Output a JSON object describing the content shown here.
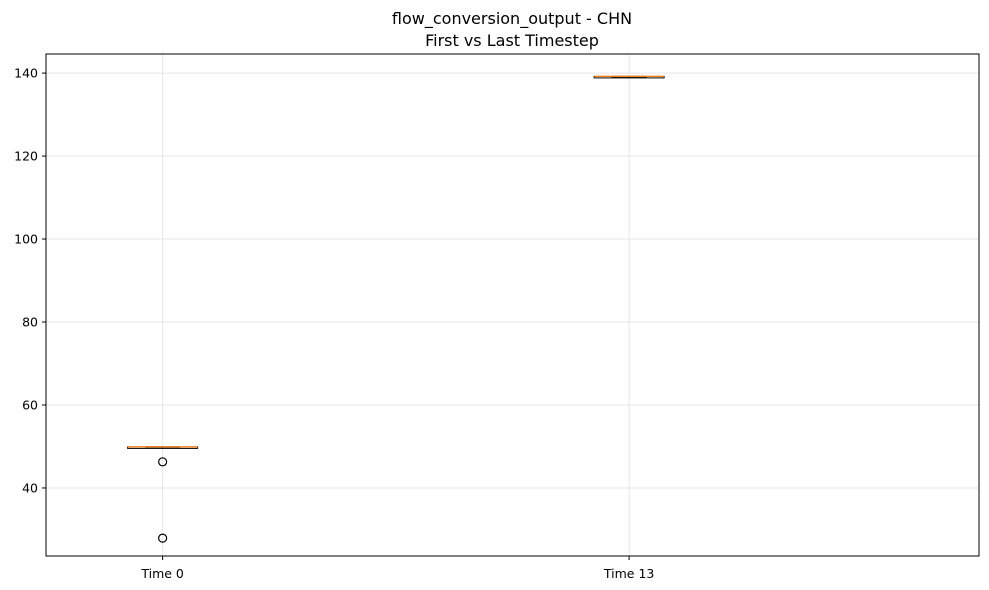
{
  "chart_data": {
    "type": "box",
    "title": "flow_conversion_output - CHN",
    "subtitle": "First vs Last Timestep",
    "xlabel": "",
    "ylabel": "",
    "categories": [
      "Time 0",
      "Time 13"
    ],
    "ylim": [
      23.6,
      144.6
    ],
    "yticks": [
      40,
      60,
      80,
      100,
      120,
      140
    ],
    "grid": true,
    "boxes": [
      {
        "category": "Time 0",
        "whisker_low": 49.8,
        "q1": 49.8,
        "median": 49.9,
        "q3": 49.9,
        "whisker_high": 49.9,
        "outliers": [
          46.3,
          27.9
        ]
      },
      {
        "category": "Time 13",
        "whisker_low": 139.1,
        "q1": 139.1,
        "median": 139.2,
        "q3": 139.2,
        "whisker_high": 139.2,
        "outliers": []
      }
    ],
    "colors": {
      "box": "#000000",
      "median": "#ff7f0e",
      "grid": "#e6e6e6",
      "outlier_edge": "#000000"
    }
  }
}
